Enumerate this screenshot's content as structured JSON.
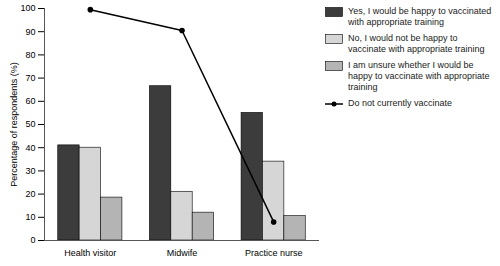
{
  "chart_data": {
    "type": "bar",
    "categories": [
      "Health visitor",
      "Midwife",
      "Practice nurse"
    ],
    "series": [
      {
        "name": "Yes, I would be happy to vaccinated with appropriate training",
        "color": "#3c3c3c",
        "values": [
          41,
          66.5,
          55
        ]
      },
      {
        "name": "No, I would not be happy to vaccinate with appropriate training",
        "color": "#d6d6d6",
        "values": [
          40,
          21,
          34
        ]
      },
      {
        "name": "I am unsure whether I would be happy to vaccinate with appropriate training",
        "color": "#b4b4b4",
        "values": [
          18.5,
          12,
          10.5
        ]
      },
      {
        "name": "Do not currently vaccinate",
        "type": "line",
        "color": "#000000",
        "marker": "circle",
        "values": [
          99.5,
          90.5,
          8
        ]
      }
    ],
    "ylabel": "Percentage of respondents (%)",
    "ylim": [
      0,
      100
    ],
    "yticks": [
      0,
      10,
      20,
      30,
      40,
      50,
      60,
      70,
      80,
      90,
      100
    ],
    "legend": "top-right"
  }
}
